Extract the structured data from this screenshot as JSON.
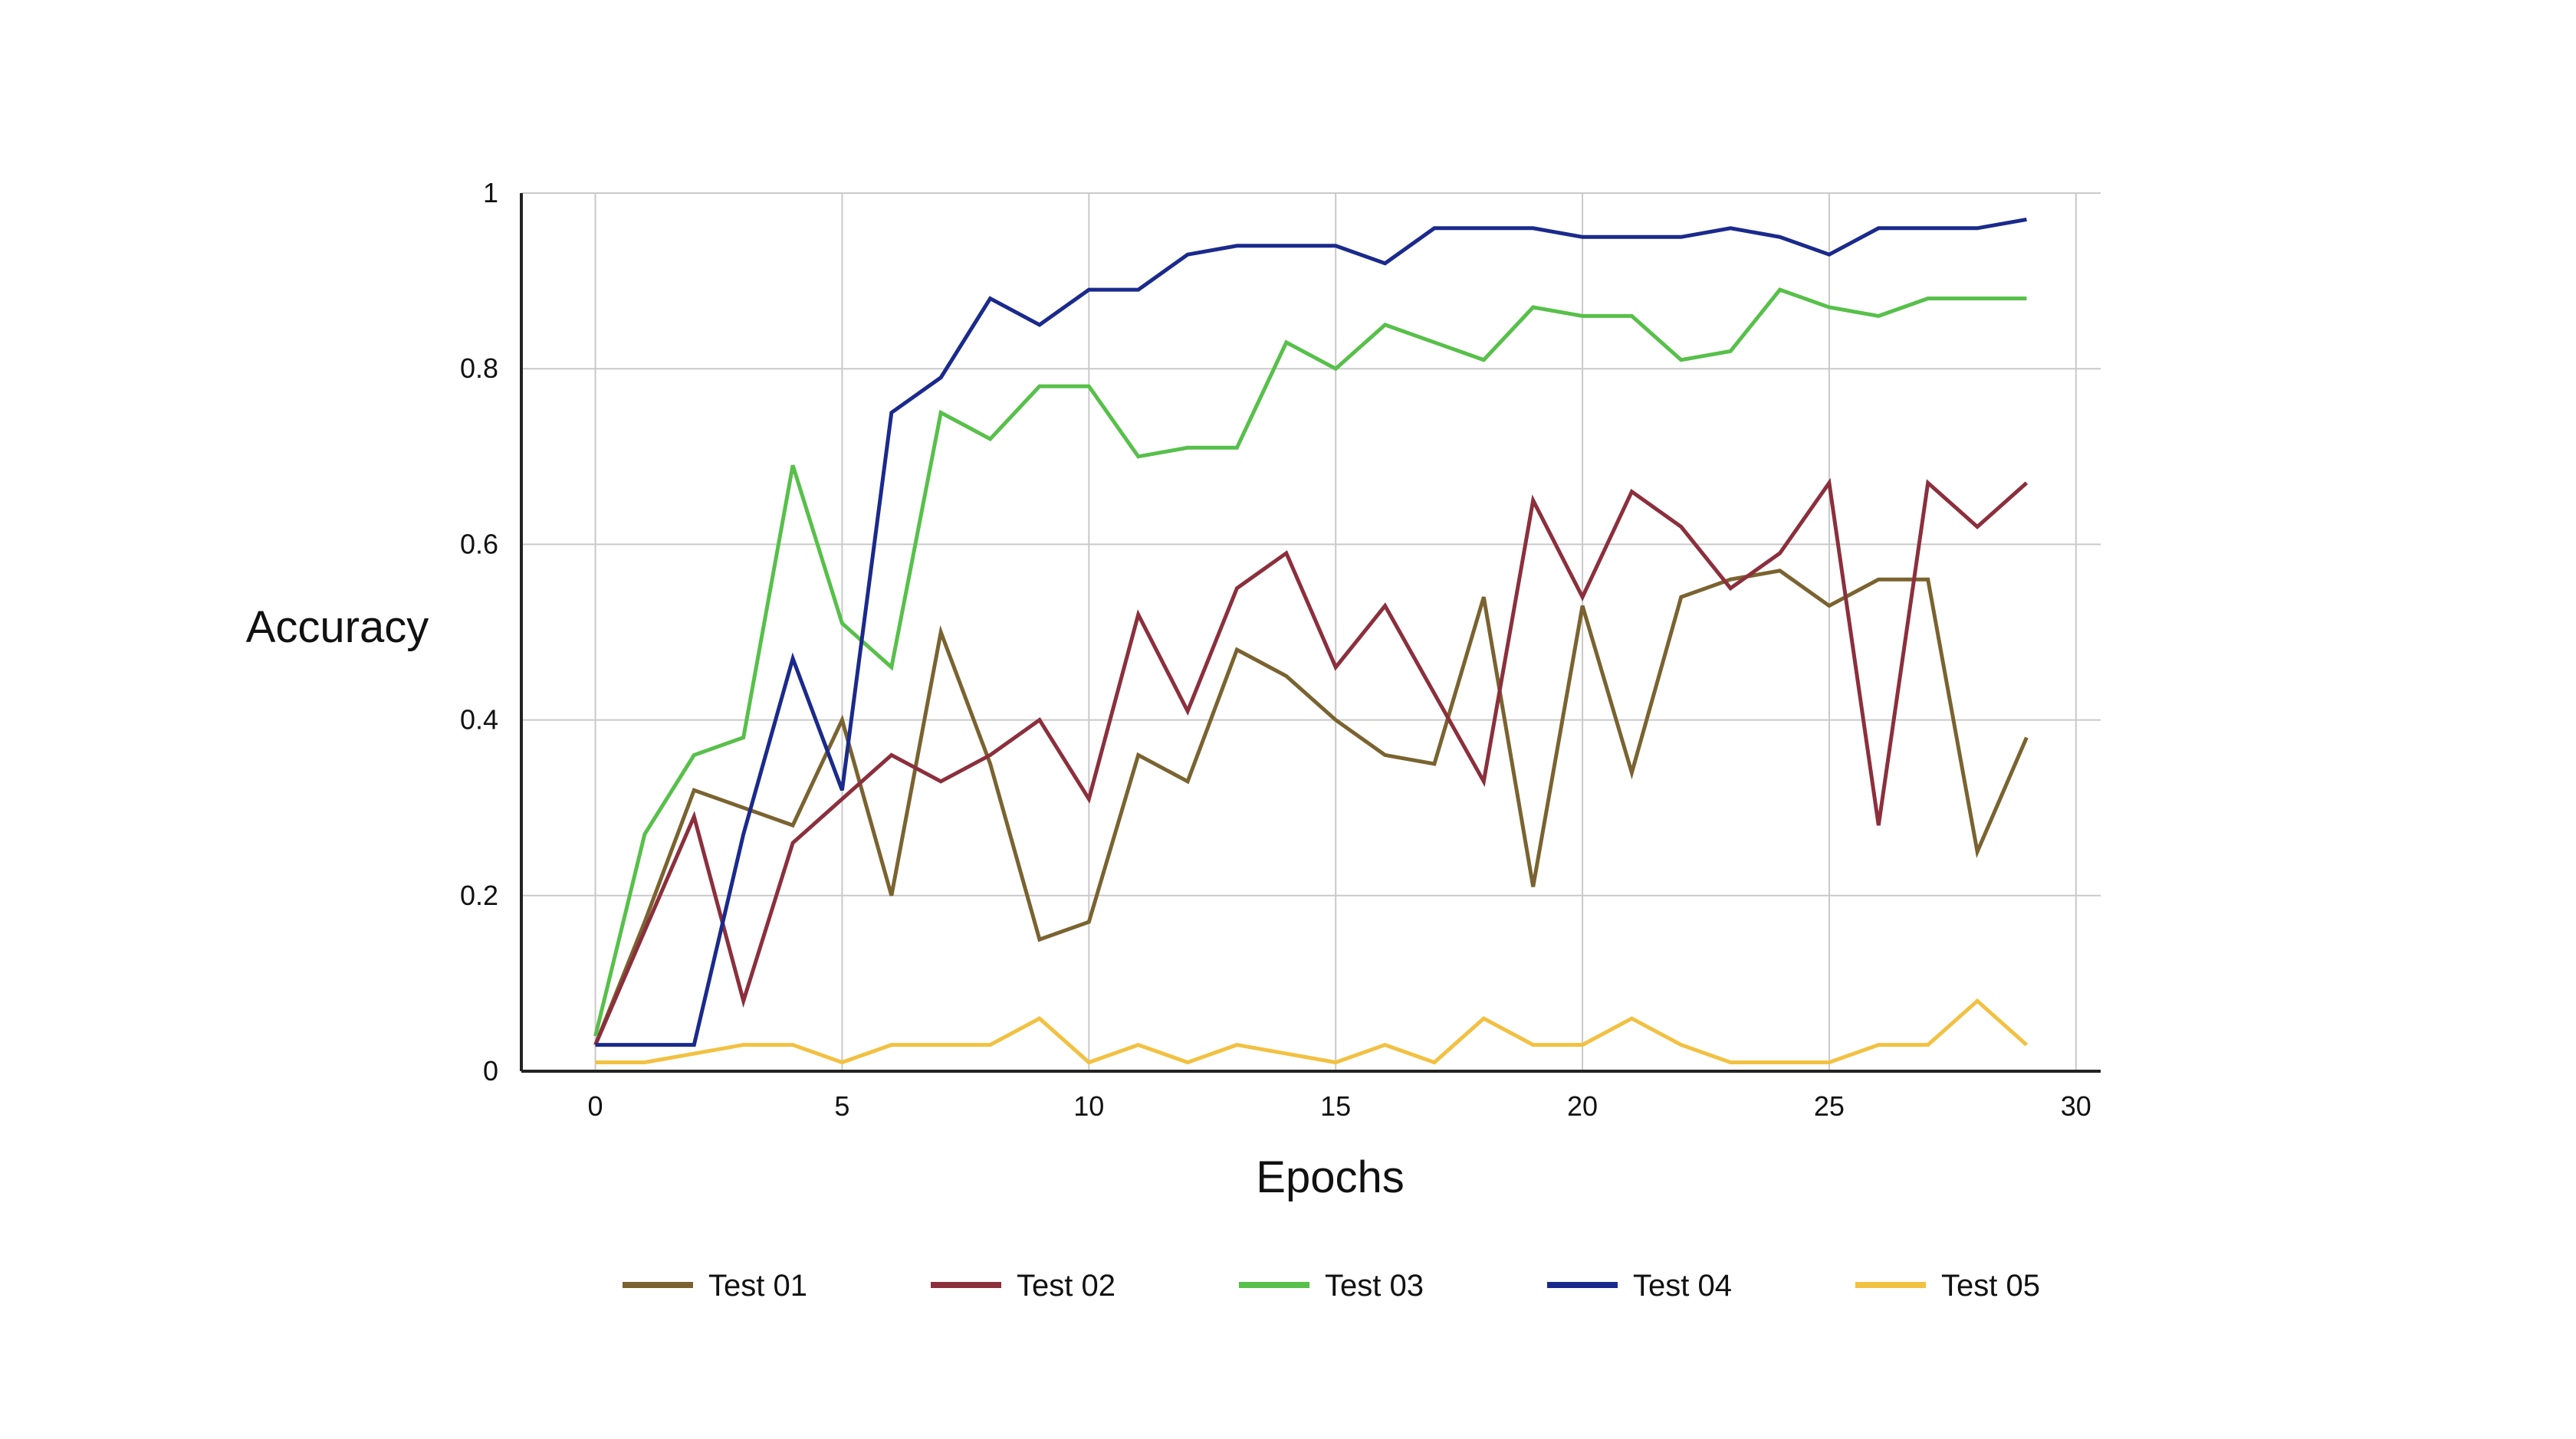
{
  "chart_data": {
    "type": "line",
    "xlabel": "Epochs",
    "ylabel": "Accuracy",
    "xlim": [
      -1.5,
      30.5
    ],
    "ylim": [
      0,
      1
    ],
    "x_ticks": [
      0,
      5,
      10,
      15,
      20,
      25,
      30
    ],
    "y_ticks": [
      0,
      0.2,
      0.4,
      0.6,
      0.8,
      1
    ],
    "y_tick_labels": [
      "0",
      "0.2",
      "0.4",
      "0.6",
      "0.8",
      "1"
    ],
    "grid": true,
    "legend_position": "bottom",
    "x": [
      0,
      1,
      2,
      3,
      4,
      5,
      6,
      7,
      8,
      9,
      10,
      11,
      12,
      13,
      14,
      15,
      16,
      17,
      18,
      19,
      20,
      21,
      22,
      23,
      24,
      25,
      26,
      27,
      28,
      29
    ],
    "series": [
      {
        "name": "Test 01",
        "color": "#7a6330",
        "values": [
          0.03,
          0.17,
          0.32,
          0.3,
          0.28,
          0.4,
          0.2,
          0.5,
          0.35,
          0.15,
          0.17,
          0.36,
          0.33,
          0.48,
          0.45,
          0.4,
          0.36,
          0.35,
          0.54,
          0.21,
          0.53,
          0.34,
          0.54,
          0.56,
          0.57,
          0.53,
          0.56,
          0.56,
          0.25,
          0.38
        ]
      },
      {
        "name": "Test 02",
        "color": "#8c2f3c",
        "values": [
          0.03,
          0.16,
          0.29,
          0.08,
          0.26,
          0.31,
          0.36,
          0.33,
          0.36,
          0.4,
          0.31,
          0.52,
          0.41,
          0.55,
          0.59,
          0.46,
          0.53,
          0.43,
          0.33,
          0.65,
          0.54,
          0.66,
          0.62,
          0.55,
          0.59,
          0.67,
          0.28,
          0.67,
          0.62,
          0.67
        ]
      },
      {
        "name": "Test 03",
        "color": "#57c04a",
        "values": [
          0.04,
          0.27,
          0.36,
          0.38,
          0.69,
          0.51,
          0.46,
          0.75,
          0.72,
          0.78,
          0.78,
          0.7,
          0.71,
          0.71,
          0.83,
          0.8,
          0.85,
          0.83,
          0.81,
          0.87,
          0.86,
          0.86,
          0.81,
          0.82,
          0.89,
          0.87,
          0.86,
          0.88,
          0.88,
          0.88
        ]
      },
      {
        "name": "Test 04",
        "color": "#1a2a8c",
        "values": [
          0.03,
          0.03,
          0.03,
          0.27,
          0.47,
          0.32,
          0.75,
          0.79,
          0.88,
          0.85,
          0.89,
          0.89,
          0.93,
          0.94,
          0.94,
          0.94,
          0.92,
          0.96,
          0.96,
          0.96,
          0.95,
          0.95,
          0.95,
          0.96,
          0.95,
          0.93,
          0.96,
          0.96,
          0.96,
          0.97
        ]
      },
      {
        "name": "Test 05",
        "color": "#f2c141",
        "values": [
          0.01,
          0.01,
          0.02,
          0.03,
          0.03,
          0.01,
          0.03,
          0.03,
          0.03,
          0.06,
          0.01,
          0.03,
          0.01,
          0.03,
          0.02,
          0.01,
          0.03,
          0.01,
          0.06,
          0.03,
          0.03,
          0.06,
          0.03,
          0.01,
          0.01,
          0.01,
          0.03,
          0.03,
          0.08,
          0.03
        ]
      }
    ]
  }
}
